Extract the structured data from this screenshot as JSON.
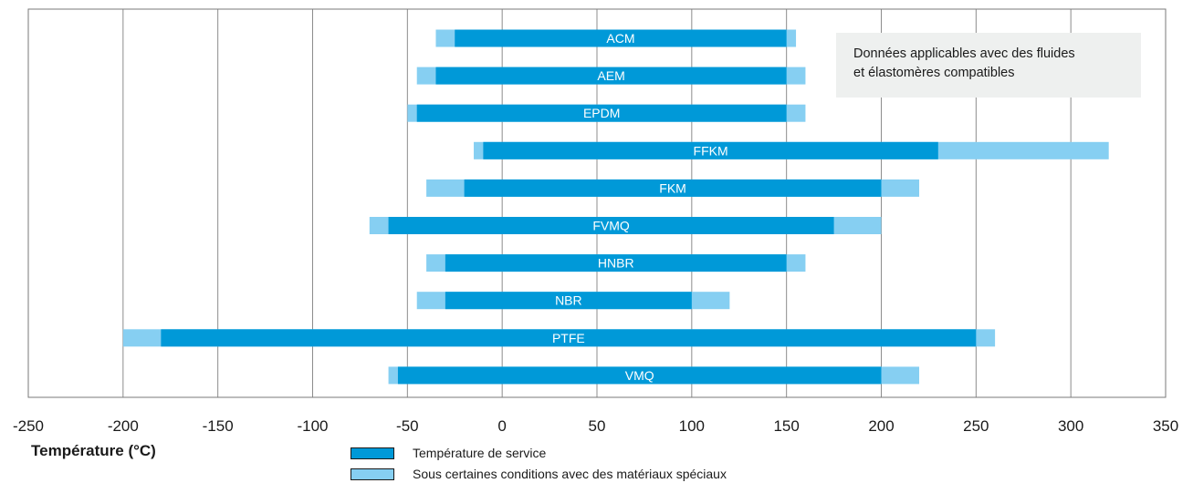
{
  "chart_data": {
    "type": "bar",
    "orientation": "horizontal-range",
    "categories": [
      "ACM",
      "AEM",
      "EPDM",
      "FFKM",
      "FKM",
      "FVMQ",
      "HNBR",
      "NBR",
      "PTFE",
      "VMQ"
    ],
    "series": [
      {
        "name": "Température de service",
        "color": "#0099d8",
        "ranges": [
          [
            -25,
            150
          ],
          [
            -35,
            150
          ],
          [
            -45,
            150
          ],
          [
            -10,
            230
          ],
          [
            -20,
            200
          ],
          [
            -60,
            175
          ],
          [
            -30,
            150
          ],
          [
            -30,
            100
          ],
          [
            -180,
            250
          ],
          [
            -55,
            200
          ]
        ]
      },
      {
        "name": "Sous certaines conditions avec des matériaux spéciaux",
        "color": "#86cff2",
        "ranges": [
          [
            -35,
            155
          ],
          [
            -45,
            160
          ],
          [
            -50,
            160
          ],
          [
            -15,
            320
          ],
          [
            -40,
            220
          ],
          [
            -70,
            200
          ],
          [
            -40,
            160
          ],
          [
            -45,
            120
          ],
          [
            -200,
            260
          ],
          [
            -60,
            220
          ]
        ]
      }
    ],
    "xlim": [
      -250,
      350
    ],
    "xticks": [
      "-250",
      "-200",
      "-150",
      "-100",
      "-50",
      "0",
      "50",
      "100",
      "150",
      "200",
      "250",
      "300",
      "350"
    ],
    "xlabel": "Température (°C)",
    "grid": "vertical",
    "legend_position": "bottom"
  },
  "note": {
    "line1": "Données applicables avec des fluides",
    "line2": "et élastomères compatibles"
  },
  "legend": [
    {
      "label": "Température de service",
      "color": "#0099d8"
    },
    {
      "label": "Sous certaines conditions avec des matériaux spéciaux",
      "color": "#86cff2"
    }
  ]
}
